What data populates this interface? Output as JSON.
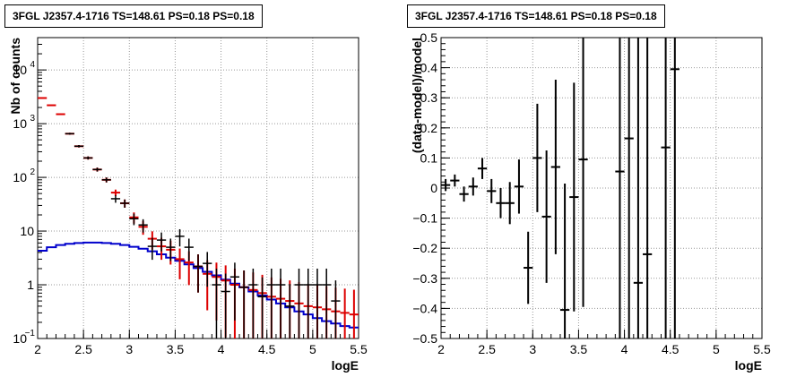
{
  "chart_data": [
    {
      "type": "scatter",
      "title": "3FGL J2357.4-1716 TS=148.61 PS=0.18 PS=0.18",
      "xlabel": "logE",
      "ylabel": "Nb of counts",
      "xlim": [
        2,
        5.5
      ],
      "ylim": [
        0.1,
        40000
      ],
      "yscale": "log",
      "grid": true,
      "x_ticks": [
        "2",
        "2.5",
        "3",
        "3.5",
        "4",
        "4.5",
        "5",
        "5.5"
      ],
      "y_ticks": [
        "10^-1",
        "1",
        "10",
        "10^2",
        "10^3",
        "10^4"
      ],
      "series": [
        {
          "color": "#000000",
          "style": "errorbar-points",
          "x": [
            2.35,
            2.45,
            2.55,
            2.65,
            2.75,
            2.85,
            2.95,
            3.05,
            3.15,
            3.25,
            3.35,
            3.45,
            3.55,
            3.65,
            3.75,
            3.85,
            3.95,
            4.05,
            4.15,
            4.25,
            4.35,
            4.45,
            4.55,
            4.65,
            4.75,
            4.85,
            4.95,
            5.05,
            5.15,
            5.25
          ],
          "y": [
            650,
            380,
            230,
            140,
            90,
            40,
            33,
            17,
            13,
            5.2,
            6.8,
            5,
            8,
            5,
            2.2,
            2.5,
            1,
            0.75,
            1.4,
            0.9,
            1,
            0.6,
            1,
            1,
            0.4,
            1,
            1,
            1,
            1,
            0.5
          ]
        },
        {
          "color": "#dd0000",
          "style": "errorbar-points",
          "x": [
            2.05,
            2.15,
            2.25,
            2.35,
            2.45,
            2.55,
            2.65,
            2.75,
            2.85,
            2.95,
            3.05,
            3.15,
            3.25,
            3.35,
            3.45,
            3.55,
            3.65,
            3.75,
            3.85,
            3.95,
            4.05,
            4.15,
            4.25,
            4.35,
            4.45,
            4.55,
            4.65,
            4.75,
            4.85,
            4.95,
            5.05,
            5.15,
            5.25,
            5.35,
            5.45
          ],
          "y": [
            3000,
            2200,
            1500,
            650,
            380,
            230,
            140,
            90,
            52,
            33,
            18,
            12,
            7.2,
            5.2,
            4.5,
            3,
            2.6,
            2.2,
            1.6,
            1.4,
            1.2,
            1,
            0.9,
            0.8,
            0.7,
            0.6,
            0.55,
            0.5,
            0.45,
            0.4,
            0.38,
            0.35,
            0.32,
            0.3,
            0.28
          ]
        },
        {
          "color": "#0000cc",
          "style": "step",
          "x": [
            2.0,
            2.1,
            2.2,
            2.3,
            2.4,
            2.5,
            2.6,
            2.7,
            2.8,
            2.9,
            3.0,
            3.1,
            3.2,
            3.3,
            3.4,
            3.5,
            3.6,
            3.7,
            3.8,
            3.9,
            4.0,
            4.1,
            4.2,
            4.3,
            4.4,
            4.5,
            4.6,
            4.7,
            4.8,
            4.9,
            5.0,
            5.1,
            5.2,
            5.3,
            5.4
          ],
          "y": [
            4.3,
            5.0,
            5.5,
            5.8,
            6.0,
            6.1,
            6.1,
            6.0,
            5.8,
            5.5,
            5.1,
            4.7,
            4.2,
            3.7,
            3.2,
            2.8,
            2.4,
            2.05,
            1.75,
            1.5,
            1.25,
            1.05,
            0.9,
            0.75,
            0.63,
            0.53,
            0.45,
            0.38,
            0.32,
            0.28,
            0.24,
            0.21,
            0.19,
            0.17,
            0.16
          ]
        }
      ]
    },
    {
      "type": "scatter",
      "title": "3FGL J2357.4-1716 TS=148.61 PS=0.18 PS=0.18",
      "xlabel": "logE",
      "ylabel": "(data-model)/model",
      "xlim": [
        2,
        5.5
      ],
      "ylim": [
        -0.5,
        0.5
      ],
      "grid": true,
      "x_ticks": [
        "2",
        "2.5",
        "3",
        "3.5",
        "4",
        "4.5",
        "5",
        "5.5"
      ],
      "y_ticks": [
        "−0.5",
        "−0.4",
        "−0.3",
        "−0.2",
        "−0.1",
        "0",
        "0.1",
        "0.2",
        "0.3",
        "0.4",
        "0.5"
      ],
      "series": [
        {
          "color": "#000000",
          "style": "errorbar-points",
          "x": [
            2.05,
            2.15,
            2.25,
            2.35,
            2.45,
            2.55,
            2.65,
            2.75,
            2.85,
            2.95,
            3.05,
            3.15,
            3.25,
            3.35,
            3.45,
            3.55,
            3.95,
            4.05,
            4.15,
            4.25,
            4.45,
            4.55
          ],
          "y": [
            0.01,
            0.025,
            -0.02,
            0.005,
            0.065,
            -0.01,
            -0.05,
            -0.05,
            0.005,
            -0.265,
            0.1,
            -0.095,
            0.07,
            -0.405,
            -0.03,
            0.095,
            0.055,
            0.165,
            -0.315,
            -0.22,
            0.135,
            0.395
          ],
          "yerr": [
            0.02,
            0.02,
            0.025,
            0.03,
            0.035,
            0.04,
            0.05,
            0.07,
            0.09,
            0.12,
            0.18,
            0.22,
            0.29,
            0.42,
            0.38,
            0.49,
            0.9,
            0.9,
            0.9,
            0.9,
            0.9,
            0.9
          ]
        }
      ]
    }
  ]
}
